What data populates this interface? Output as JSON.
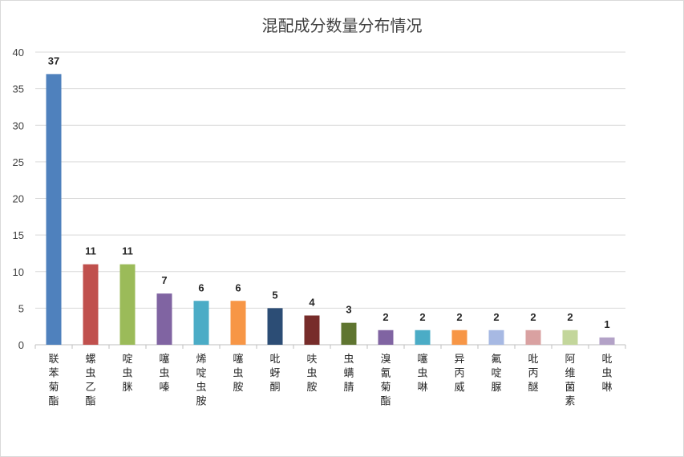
{
  "chart_data": {
    "type": "bar",
    "title": "混配成分数量分布情况",
    "xlabel": "",
    "ylabel": "",
    "ylim": [
      0,
      40
    ],
    "yticks": [
      0,
      5,
      10,
      15,
      20,
      25,
      30,
      35,
      40
    ],
    "grid": true,
    "legend": "none",
    "categories": [
      "联苯菊酯",
      "螺虫乙酯",
      "啶虫脒",
      "噻虫嗪",
      "烯啶虫胺",
      "噻虫胺",
      "吡蚜酮",
      "呋虫胺",
      "虫螨腈",
      "溴氰菊酯",
      "噻虫啉",
      "异丙威",
      "氟啶脲",
      "吡丙醚",
      "阿维菌素",
      "吡虫啉"
    ],
    "values": [
      37,
      11,
      11,
      7,
      6,
      6,
      5,
      4,
      3,
      2,
      2,
      2,
      2,
      2,
      2,
      1
    ],
    "colors": [
      "#4F81BD",
      "#C0504D",
      "#9BBB59",
      "#8064A2",
      "#4BACC6",
      "#F79646",
      "#2C4D75",
      "#772C2A",
      "#5F7530",
      "#8064A2",
      "#4BACC6",
      "#F79646",
      "#A7B9E3",
      "#D9A1A1",
      "#C3D69B",
      "#B3A2C7"
    ]
  }
}
